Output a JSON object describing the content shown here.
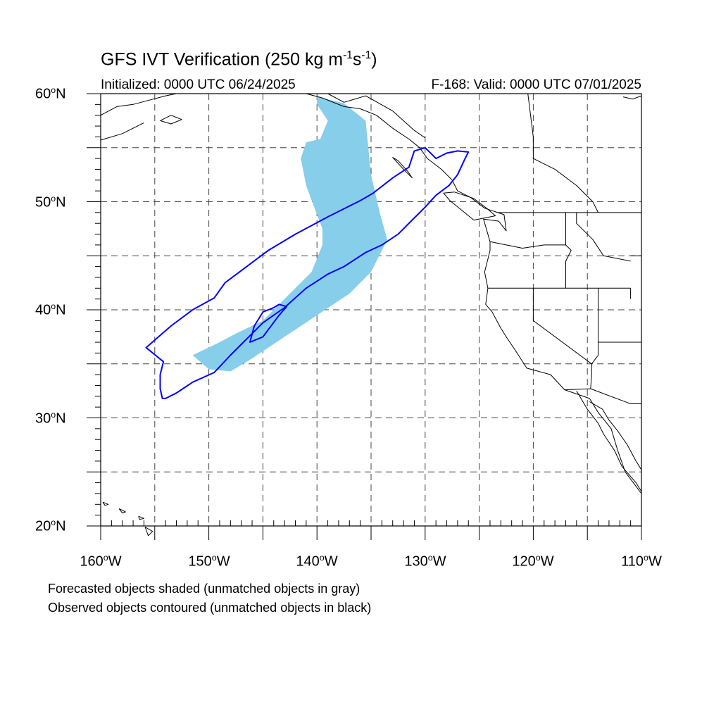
{
  "header": {
    "title_prefix": "GFS IVT Verification (250 kg m",
    "title_exp1": "-1",
    "title_mid": "s",
    "title_exp2": "-1",
    "title_suffix": ")",
    "initialized": "Initialized: 0000 UTC 06/24/2025",
    "valid": "F-168: Valid: 0000 UTC 07/01/2025"
  },
  "map": {
    "lon_range": [
      -160,
      -110
    ],
    "lat_range": [
      20,
      60
    ],
    "grid": "dashed every 5 degrees",
    "lat_labels": [
      {
        "base": "60",
        "deg": "o",
        "hemi": "N"
      },
      {
        "base": "50",
        "deg": "o",
        "hemi": "N"
      },
      {
        "base": "40",
        "deg": "o",
        "hemi": "N"
      },
      {
        "base": "30",
        "deg": "o",
        "hemi": "N"
      },
      {
        "base": "20",
        "deg": "o",
        "hemi": "N"
      }
    ],
    "lon_labels": [
      {
        "base": "160",
        "deg": "o",
        "hemi": "W"
      },
      {
        "base": "150",
        "deg": "o",
        "hemi": "W"
      },
      {
        "base": "140",
        "deg": "o",
        "hemi": "W"
      },
      {
        "base": "130",
        "deg": "o",
        "hemi": "W"
      },
      {
        "base": "120",
        "deg": "o",
        "hemi": "W"
      },
      {
        "base": "110",
        "deg": "o",
        "hemi": "W"
      }
    ],
    "forecast_color": "#87ceeb",
    "observed_color": "#0000ff",
    "coast_color": "#000000",
    "forecast_object": [
      [
        -140.0,
        59.7
      ],
      [
        -137.5,
        59.1
      ],
      [
        -135.5,
        57.5
      ],
      [
        -135.0,
        52.5
      ],
      [
        -134.2,
        49.0
      ],
      [
        -133.5,
        46.5
      ],
      [
        -135.0,
        43.5
      ],
      [
        -137.0,
        41.5
      ],
      [
        -140.0,
        39.5
      ],
      [
        -143.0,
        37.5
      ],
      [
        -146.0,
        35.5
      ],
      [
        -148.0,
        34.3
      ],
      [
        -150.0,
        34.5
      ],
      [
        -151.5,
        35.8
      ],
      [
        -149.0,
        37.0
      ],
      [
        -147.5,
        37.8
      ],
      [
        -145.0,
        39.0
      ],
      [
        -142.5,
        41.5
      ],
      [
        -140.5,
        43.5
      ],
      [
        -139.5,
        46.0
      ],
      [
        -139.5,
        47.5
      ],
      [
        -140.0,
        48.8
      ],
      [
        -141.0,
        51.5
      ],
      [
        -141.5,
        54.0
      ],
      [
        -141.0,
        55.5
      ],
      [
        -139.7,
        55.8
      ],
      [
        -139.0,
        57.5
      ],
      [
        -140.0,
        59.0
      ]
    ],
    "observed_object": [
      [
        -154.0,
        31.8
      ],
      [
        -153.0,
        32.3
      ],
      [
        -151.5,
        33.3
      ],
      [
        -149.5,
        34.2
      ],
      [
        -148.0,
        35.8
      ],
      [
        -146.5,
        37.3
      ],
      [
        -145.0,
        38.8
      ],
      [
        -143.0,
        40.2
      ],
      [
        -141.0,
        42.0
      ],
      [
        -139.0,
        43.3
      ],
      [
        -137.5,
        44.0
      ],
      [
        -135.5,
        45.3
      ],
      [
        -134.0,
        46.0
      ],
      [
        -132.5,
        47.0
      ],
      [
        -131.0,
        48.5
      ],
      [
        -130.0,
        49.5
      ],
      [
        -129.0,
        50.6
      ],
      [
        -127.8,
        51.5
      ],
      [
        -127.0,
        52.5
      ],
      [
        -126.3,
        54.0
      ],
      [
        -126.0,
        54.6
      ],
      [
        -127.0,
        54.7
      ],
      [
        -128.0,
        54.5
      ],
      [
        -129.0,
        54.0
      ],
      [
        -130.0,
        55.0
      ],
      [
        -131.0,
        54.7
      ],
      [
        -131.5,
        53.2
      ],
      [
        -133.0,
        52.2
      ],
      [
        -134.8,
        50.8
      ],
      [
        -136.0,
        50.1
      ],
      [
        -139.0,
        48.6
      ],
      [
        -142.0,
        47.0
      ],
      [
        -144.5,
        45.5
      ],
      [
        -146.5,
        44.0
      ],
      [
        -148.5,
        42.5
      ],
      [
        -149.5,
        41.1
      ],
      [
        -151.5,
        40.0
      ],
      [
        -153.5,
        38.5
      ],
      [
        -155.0,
        37.2
      ],
      [
        -155.8,
        36.5
      ],
      [
        -154.2,
        35.2
      ],
      [
        -154.5,
        34.0
      ],
      [
        -154.5,
        32.7
      ],
      [
        -154.3,
        31.8
      ]
    ],
    "observed_inner": [
      [
        -145.0,
        39.8
      ],
      [
        -144.0,
        40.2
      ],
      [
        -143.5,
        40.5
      ],
      [
        -142.8,
        40.3
      ],
      [
        -143.5,
        39.5
      ],
      [
        -145.0,
        37.5
      ],
      [
        -146.2,
        37.0
      ],
      [
        -145.8,
        38.5
      ],
      [
        -145.0,
        39.8
      ]
    ]
  },
  "footnotes": {
    "forecast": "Forecasted objects shaded (unmatched objects in gray)",
    "observed": "Observed objects contoured (unmatched objects in black)"
  }
}
